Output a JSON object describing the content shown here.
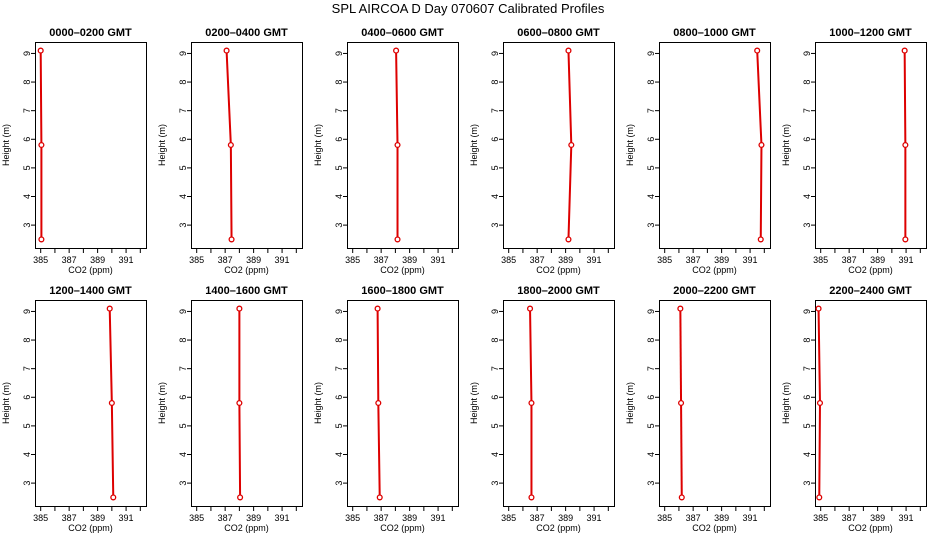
{
  "page": {
    "title": "SPL AIRCOA D  Day 070607  Calibrated Profiles"
  },
  "style": {
    "line_color": "#dd0000",
    "point_color": "#dd0000",
    "axis_color": "#000000"
  },
  "chart_data": [
    {
      "type": "line",
      "title": "0000–0200 GMT",
      "xlabel": "CO2 (ppm)",
      "ylabel": "Height (m)",
      "xlim": [
        384.6,
        392.4
      ],
      "ylim": [
        2.2,
        9.4
      ],
      "x_ticks": [
        385,
        387,
        389,
        391
      ],
      "y_ticks": [
        3,
        4,
        5,
        6,
        7,
        8,
        9
      ],
      "grid": false,
      "series": [
        {
          "x": [
            385.05,
            385.05,
            385.0
          ],
          "y": [
            2.5,
            5.8,
            9.1
          ]
        }
      ]
    },
    {
      "type": "line",
      "title": "0200–0400 GMT",
      "xlabel": "CO2 (ppm)",
      "ylabel": "Height (m)",
      "xlim": [
        384.6,
        392.4
      ],
      "ylim": [
        2.2,
        9.4
      ],
      "x_ticks": [
        385,
        387,
        389,
        391
      ],
      "y_ticks": [
        3,
        4,
        5,
        6,
        7,
        8,
        9
      ],
      "grid": false,
      "series": [
        {
          "x": [
            387.45,
            387.4,
            387.1
          ],
          "y": [
            2.5,
            5.8,
            9.1
          ]
        }
      ]
    },
    {
      "type": "line",
      "title": "0400–0600 GMT",
      "xlabel": "CO2 (ppm)",
      "ylabel": "Height (m)",
      "xlim": [
        384.6,
        392.4
      ],
      "ylim": [
        2.2,
        9.4
      ],
      "x_ticks": [
        385,
        387,
        389,
        391
      ],
      "y_ticks": [
        3,
        4,
        5,
        6,
        7,
        8,
        9
      ],
      "grid": false,
      "series": [
        {
          "x": [
            388.15,
            388.15,
            388.05
          ],
          "y": [
            2.5,
            5.8,
            9.1
          ]
        }
      ]
    },
    {
      "type": "line",
      "title": "0600–0800 GMT",
      "xlabel": "CO2 (ppm)",
      "ylabel": "Height (m)",
      "xlim": [
        384.6,
        392.4
      ],
      "ylim": [
        2.2,
        9.4
      ],
      "x_ticks": [
        385,
        387,
        389,
        391
      ],
      "y_ticks": [
        3,
        4,
        5,
        6,
        7,
        8,
        9
      ],
      "grid": false,
      "series": [
        {
          "x": [
            389.2,
            389.4,
            389.2
          ],
          "y": [
            2.5,
            5.8,
            9.1
          ]
        }
      ]
    },
    {
      "type": "line",
      "title": "0800–1000 GMT",
      "xlabel": "CO2 (ppm)",
      "ylabel": "Height (m)",
      "xlim": [
        384.6,
        392.4
      ],
      "ylim": [
        2.2,
        9.4
      ],
      "x_ticks": [
        385,
        387,
        389,
        391
      ],
      "y_ticks": [
        3,
        4,
        5,
        6,
        7,
        8,
        9
      ],
      "grid": false,
      "series": [
        {
          "x": [
            391.75,
            391.8,
            391.5
          ],
          "y": [
            2.5,
            5.8,
            9.1
          ]
        }
      ]
    },
    {
      "type": "line",
      "title": "1000–1200 GMT",
      "xlabel": "CO2 (ppm)",
      "ylabel": "Height (m)",
      "xlim": [
        384.6,
        392.4
      ],
      "ylim": [
        2.2,
        9.4
      ],
      "x_ticks": [
        385,
        387,
        389,
        391
      ],
      "y_ticks": [
        3,
        4,
        5,
        6,
        7,
        8,
        9
      ],
      "grid": false,
      "series": [
        {
          "x": [
            390.95,
            390.95,
            390.9
          ],
          "y": [
            2.5,
            5.8,
            9.1
          ]
        }
      ]
    },
    {
      "type": "line",
      "title": "1200–1400 GMT",
      "xlabel": "CO2 (ppm)",
      "ylabel": "Height (m)",
      "xlim": [
        384.6,
        392.4
      ],
      "ylim": [
        2.2,
        9.4
      ],
      "x_ticks": [
        385,
        387,
        389,
        391
      ],
      "y_ticks": [
        3,
        4,
        5,
        6,
        7,
        8,
        9
      ],
      "grid": false,
      "series": [
        {
          "x": [
            390.1,
            390.0,
            389.85
          ],
          "y": [
            2.5,
            5.8,
            9.1
          ]
        }
      ]
    },
    {
      "type": "line",
      "title": "1400–1600 GMT",
      "xlabel": "CO2 (ppm)",
      "ylabel": "Height (m)",
      "xlim": [
        384.6,
        392.4
      ],
      "ylim": [
        2.2,
        9.4
      ],
      "x_ticks": [
        385,
        387,
        389,
        391
      ],
      "y_ticks": [
        3,
        4,
        5,
        6,
        7,
        8,
        9
      ],
      "grid": false,
      "series": [
        {
          "x": [
            388.05,
            388.0,
            388.0
          ],
          "y": [
            2.5,
            5.8,
            9.1
          ]
        }
      ]
    },
    {
      "type": "line",
      "title": "1600–1800 GMT",
      "xlabel": "CO2 (ppm)",
      "ylabel": "Height (m)",
      "xlim": [
        384.6,
        392.4
      ],
      "ylim": [
        2.2,
        9.4
      ],
      "x_ticks": [
        385,
        387,
        389,
        391
      ],
      "y_ticks": [
        3,
        4,
        5,
        6,
        7,
        8,
        9
      ],
      "grid": false,
      "series": [
        {
          "x": [
            386.9,
            386.8,
            386.75
          ],
          "y": [
            2.5,
            5.8,
            9.1
          ]
        }
      ]
    },
    {
      "type": "line",
      "title": "1800–2000 GMT",
      "xlabel": "CO2 (ppm)",
      "ylabel": "Height (m)",
      "xlim": [
        384.6,
        392.4
      ],
      "ylim": [
        2.2,
        9.4
      ],
      "x_ticks": [
        385,
        387,
        389,
        391
      ],
      "y_ticks": [
        3,
        4,
        5,
        6,
        7,
        8,
        9
      ],
      "grid": false,
      "series": [
        {
          "x": [
            386.6,
            386.6,
            386.5
          ],
          "y": [
            2.5,
            5.8,
            9.1
          ]
        }
      ]
    },
    {
      "type": "line",
      "title": "2000–2200 GMT",
      "xlabel": "CO2 (ppm)",
      "ylabel": "Height (m)",
      "xlim": [
        384.6,
        392.4
      ],
      "ylim": [
        2.2,
        9.4
      ],
      "x_ticks": [
        385,
        387,
        389,
        391
      ],
      "y_ticks": [
        3,
        4,
        5,
        6,
        7,
        8,
        9
      ],
      "grid": false,
      "series": [
        {
          "x": [
            386.2,
            386.15,
            386.1
          ],
          "y": [
            2.5,
            5.8,
            9.1
          ]
        }
      ]
    },
    {
      "type": "line",
      "title": "2200–2400 GMT",
      "xlabel": "CO2 (ppm)",
      "ylabel": "Height (m)",
      "xlim": [
        384.6,
        392.4
      ],
      "ylim": [
        2.2,
        9.4
      ],
      "x_ticks": [
        385,
        387,
        389,
        391
      ],
      "y_ticks": [
        3,
        4,
        5,
        6,
        7,
        8,
        9
      ],
      "grid": false,
      "series": [
        {
          "x": [
            384.9,
            384.95,
            384.85
          ],
          "y": [
            2.5,
            5.8,
            9.1
          ]
        }
      ]
    }
  ]
}
